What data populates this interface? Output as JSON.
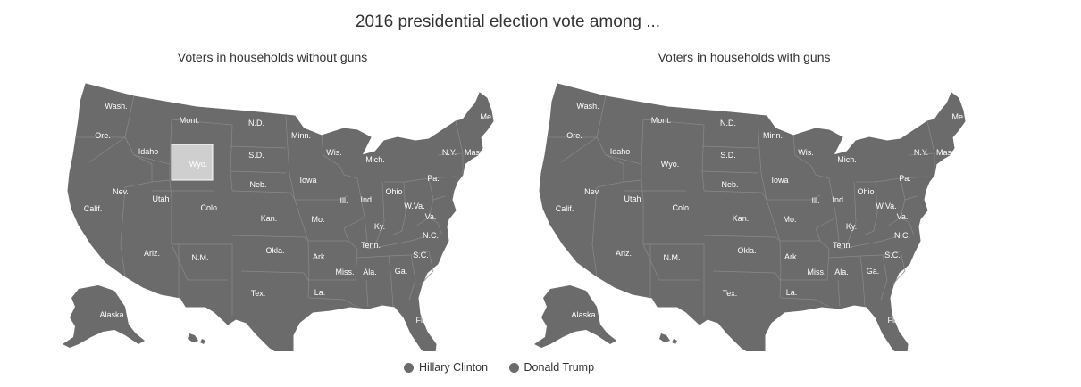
{
  "title": "2016 presidential election vote among ...",
  "colors": {
    "land": "#6b6b6b",
    "border": "#8a8a8a",
    "highlight": "#cfcfcf"
  },
  "maps": [
    {
      "subtitle": "Voters in households without guns",
      "highlighted_state": "Wyo."
    },
    {
      "subtitle": "Voters in households with guns",
      "highlighted_state": ""
    }
  ],
  "state_labels": [
    "Wash.",
    "Ore.",
    "Calif.",
    "Idaho",
    "Nev.",
    "Mont.",
    "Wyo.",
    "Utah",
    "Ariz.",
    "Colo.",
    "N.M.",
    "N.D.",
    "S.D.",
    "Neb.",
    "Kan.",
    "Okla.",
    "Tex.",
    "Minn.",
    "Iowa",
    "Mo.",
    "Ark.",
    "La.",
    "Wis.",
    "Ill.",
    "Mich.",
    "Ind.",
    "Ohio",
    "Ky.",
    "Tenn.",
    "Miss.",
    "Ala.",
    "Ga.",
    "Fla.",
    "S.C.",
    "N.C.",
    "Va.",
    "W.Va.",
    "Pa.",
    "N.Y.",
    "Mass.",
    "Me.",
    "Alaska"
  ],
  "legend": [
    {
      "label": "Hillary Clinton",
      "color": "#6b6b6b"
    },
    {
      "label": "Donald Trump",
      "color": "#6b6b6b"
    }
  ]
}
